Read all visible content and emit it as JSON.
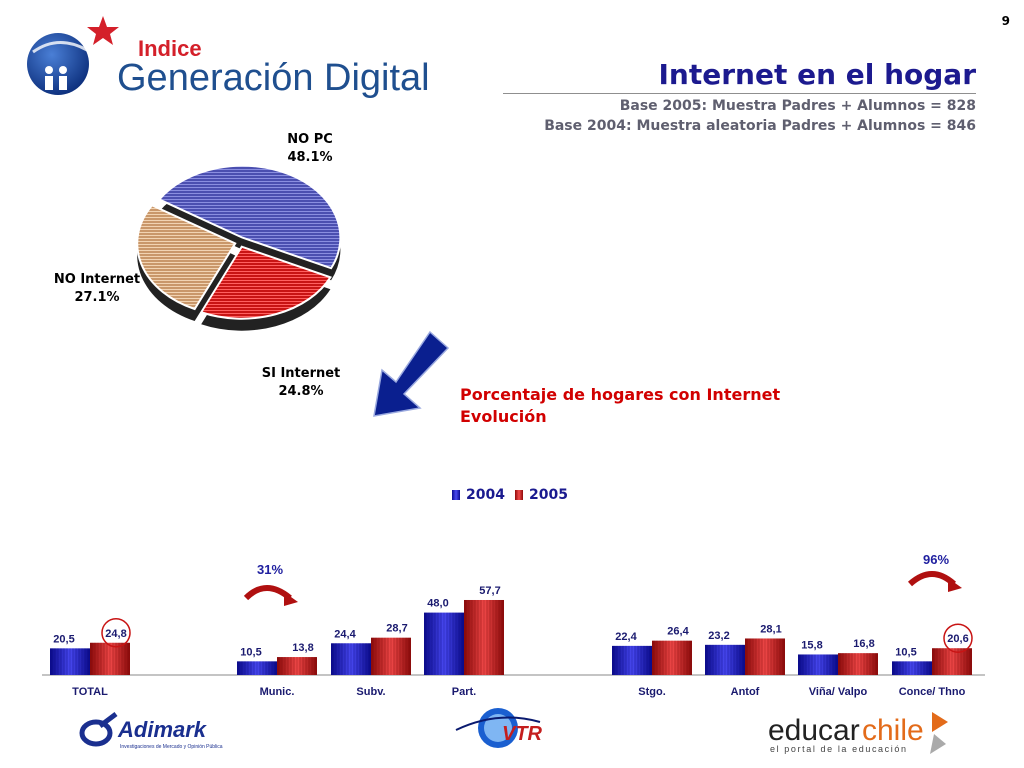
{
  "page_number": "9",
  "brand": {
    "line1": "Indice",
    "line2": "Generación Digital"
  },
  "header": {
    "title": "Internet en el hogar",
    "base_2005": "Base 2005: Muestra Padres + Alumnos = 828",
    "base_2004": "Base 2004: Muestra aleatoria Padres + Alumnos = 846"
  },
  "evolution": {
    "line1": "Porcentaje de hogares con Internet",
    "line2": "Evolución"
  },
  "annotations": {
    "left_growth": "31%",
    "right_growth": "96%"
  },
  "footer": {
    "adimark": "Adimark",
    "adimark_tagline": "Investigaciones de Mercado y Opinión Pública",
    "vtr": "VTR",
    "educar": "educar",
    "chile": "chile",
    "educar_tagline": "el portal de la educación"
  },
  "colors": {
    "s2004": "#1414d2",
    "s2005": "#d41414",
    "pie_nopc": "#4b4fb0",
    "pie_no_internet": "#d2a57c",
    "pie_si_internet": "#c81414",
    "title": "#1c1a8f",
    "accent_red": "#d10000"
  },
  "chart_data": [
    {
      "type": "pie",
      "slices": [
        {
          "label": "NO PC",
          "value": 48.1,
          "value_label": "48.1%"
        },
        {
          "label": "SI Internet",
          "value": 24.8,
          "value_label": "24.8%"
        },
        {
          "label": "NO Internet",
          "value": 27.1,
          "value_label": "27.1%"
        }
      ]
    },
    {
      "type": "bar",
      "categories": [
        "TOTAL",
        "",
        "Munic.",
        "Subv.",
        "Part.",
        "",
        "Stgo.",
        "Antof",
        "Viña/ Valpo",
        "Conce/ Thno"
      ],
      "series": [
        {
          "name": "2004",
          "values": [
            20.5,
            null,
            10.5,
            24.4,
            48.0,
            null,
            22.4,
            23.2,
            15.8,
            10.5
          ],
          "labels": [
            "20,5",
            "",
            "10,5",
            "24,4",
            "48,0",
            "",
            "22,4",
            "23,2",
            "15,8",
            "10,5"
          ]
        },
        {
          "name": "2005",
          "values": [
            24.8,
            null,
            13.8,
            28.7,
            57.7,
            null,
            26.4,
            28.1,
            16.8,
            20.6
          ],
          "labels": [
            "24,8",
            "",
            "13,8",
            "28,7",
            "57,7",
            "",
            "26,4",
            "28,1",
            "16,8",
            "20,6"
          ]
        }
      ],
      "legend_position": "top",
      "ylim": [
        0,
        60
      ],
      "grid": false,
      "circled": [
        "TOTAL/2005",
        "Conce/ Thno/2005"
      ]
    }
  ]
}
